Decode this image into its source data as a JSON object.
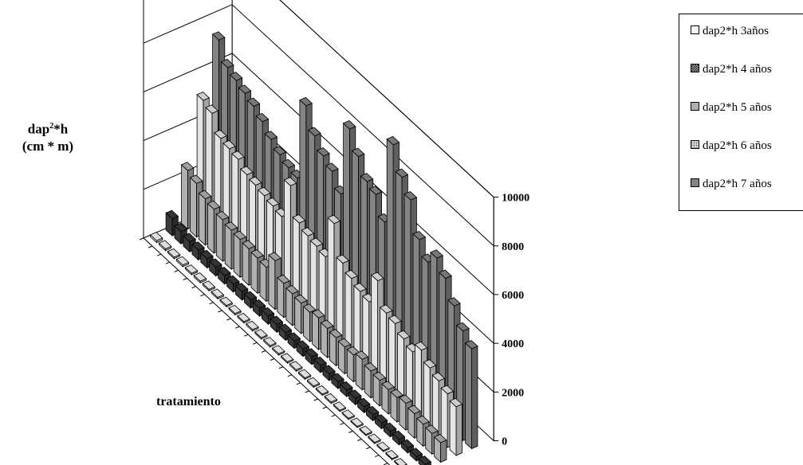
{
  "chart_data": {
    "type": "bar",
    "subtype": "3d-column",
    "title": "",
    "ylabel_line1_base": "dap",
    "ylabel_line1_sup": "2",
    "ylabel_line1_tail": "*h",
    "ylabel_line2": "(cm * m)",
    "xlabel": "tratamiento",
    "ylim": [
      0,
      10000
    ],
    "yticks": [
      "0",
      "2000",
      "4000",
      "6000",
      "8000",
      "10000"
    ],
    "grid": true,
    "legend_position": "top-right",
    "series": [
      {
        "name": "dap2*h 3años",
        "color": "#f7f7f7",
        "values": [
          80,
          70,
          60,
          70,
          60,
          65,
          60,
          60,
          60,
          55,
          55,
          60,
          55,
          60,
          55,
          55,
          60,
          55,
          55,
          50,
          55,
          50,
          50,
          45,
          45,
          50,
          45,
          40,
          40,
          35
        ]
      },
      {
        "name": "dap2*h 4 años",
        "color": "#3a3a3a",
        "values": [
          700,
          500,
          420,
          400,
          380,
          360,
          350,
          330,
          350,
          340,
          330,
          340,
          320,
          320,
          300,
          300,
          310,
          290,
          280,
          280,
          270,
          260,
          250,
          250,
          240,
          230,
          230,
          200,
          180,
          190
        ]
      },
      {
        "name": "dap2*h 5 años",
        "color": "#b0b0b0",
        "values": [
          2400,
          2200,
          1900,
          1800,
          1700,
          1600,
          1550,
          1500,
          1450,
          1400,
          2000,
          1400,
          1300,
          1250,
          1200,
          1300,
          1200,
          1150,
          1100,
          1100,
          1250,
          1100,
          1050,
          1000,
          1000,
          1100,
          1000,
          900,
          850,
          800
        ]
      },
      {
        "name": "dap2*h 6 años",
        "color": "#e4e4e4",
        "values": [
          5000,
          4800,
          4100,
          4000,
          3900,
          3600,
          3500,
          3400,
          3300,
          3200,
          4800,
          3600,
          3400,
          3300,
          3200,
          4900,
          3600,
          3300,
          3100,
          3000,
          4200,
          3200,
          3100,
          2800,
          2600,
          3000,
          2600,
          2400,
          2200,
          2000
        ]
      },
      {
        "name": "dap2*h 7 años",
        "color": "#848484",
        "values": [
          7200,
          6400,
          6200,
          6000,
          5800,
          5500,
          5100,
          4800,
          4600,
          4500,
          7800,
          6900,
          6400,
          6100,
          5500,
          8500,
          7700,
          7000,
          6800,
          6000,
          9500,
          8500,
          7900,
          6600,
          6000,
          6500,
          6000,
          5200,
          4500,
          4100
        ]
      }
    ]
  }
}
